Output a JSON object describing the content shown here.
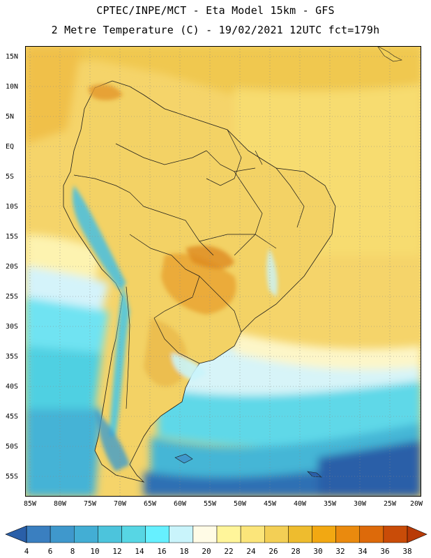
{
  "title": {
    "line1": "CPTEC/INPE/MCT -  Eta Model 15km - GFS",
    "line2": "2 Metre Temperature (C) - 19/02/2021 12UTC fct=179h"
  },
  "lat_labels": [
    "15N",
    "10N",
    "5N",
    "EQ",
    "5S",
    "10S",
    "15S",
    "20S",
    "25S",
    "30S",
    "35S",
    "40S",
    "45S",
    "50S",
    "55S"
  ],
  "lon_labels": [
    "85W",
    "80W",
    "75W",
    "70W",
    "65W",
    "60W",
    "55W",
    "50W",
    "45W",
    "40W",
    "35W",
    "30W",
    "25W",
    "20W"
  ],
  "colorbar": {
    "labels": [
      "4",
      "6",
      "8",
      "10",
      "12",
      "14",
      "16",
      "18",
      "20",
      "22",
      "24",
      "26",
      "28",
      "30",
      "32",
      "34",
      "36",
      "38"
    ],
    "colors": [
      "#2a5fa8",
      "#3a7fc0",
      "#3f98cc",
      "#43aed4",
      "#4cc4dc",
      "#57d6e4",
      "#66f0ff",
      "#c9f4fb",
      "#fffbe6",
      "#fff59a",
      "#fbe57a",
      "#f3cf55",
      "#eebc2e",
      "#f2a812",
      "#ea8a0e",
      "#dd6a0a",
      "#c94c08",
      "#b83a06"
    ]
  },
  "map_colors": {
    "frame": "#000000",
    "border": "#1a1a1a",
    "grid": "#888888"
  },
  "icons": {
    "colorbar_left": "triangle-left",
    "colorbar_right": "triangle-right"
  }
}
